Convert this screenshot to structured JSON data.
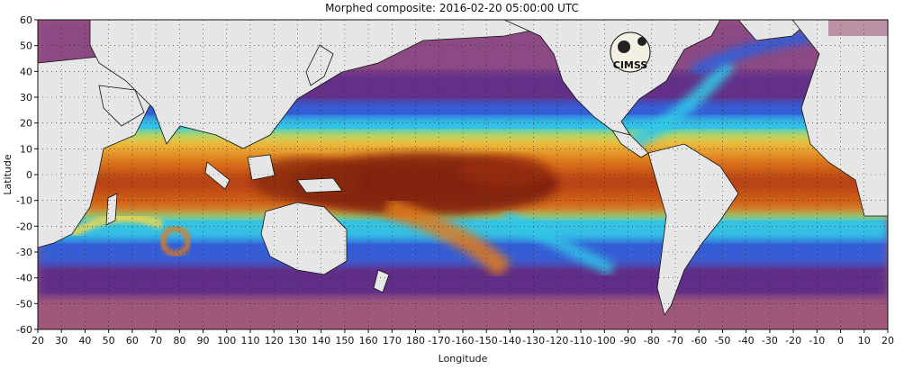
{
  "title": "Morphed composite: 2016-02-20 05:00:00 UTC",
  "xlabel": "Longitude",
  "ylabel": "Latitude",
  "logo_text": "CIMSS",
  "x_ticks": [
    "20",
    "30",
    "40",
    "50",
    "60",
    "70",
    "80",
    "90",
    "100",
    "110",
    "120",
    "130",
    "140",
    "150",
    "160",
    "170",
    "180",
    "-170",
    "-160",
    "-150",
    "-140",
    "-130",
    "-120",
    "-110",
    "-100",
    "-90",
    "-80",
    "-70",
    "-60",
    "-50",
    "-40",
    "-30",
    "-20",
    "-10",
    "0",
    "10",
    "20"
  ],
  "y_ticks": [
    "60",
    "50",
    "40",
    "30",
    "20",
    "10",
    "0",
    "-10",
    "-20",
    "-30",
    "-40",
    "-50",
    "-60"
  ],
  "colors": {
    "land": "#e6e6e6",
    "border": "#111111",
    "deep_violet": "#5a2a8a",
    "dark_brown": "#7a1e0a",
    "orange": "#e07a1e",
    "yellow": "#f2d84a",
    "cyan": "#32c8e8",
    "blue": "#2b5ee0",
    "mauve": "#a0587a"
  },
  "map_data": {
    "lon_range": [
      20,
      380
    ],
    "lat_range": [
      -60,
      60
    ],
    "grid": true,
    "colorscale": "precipitable water"
  }
}
